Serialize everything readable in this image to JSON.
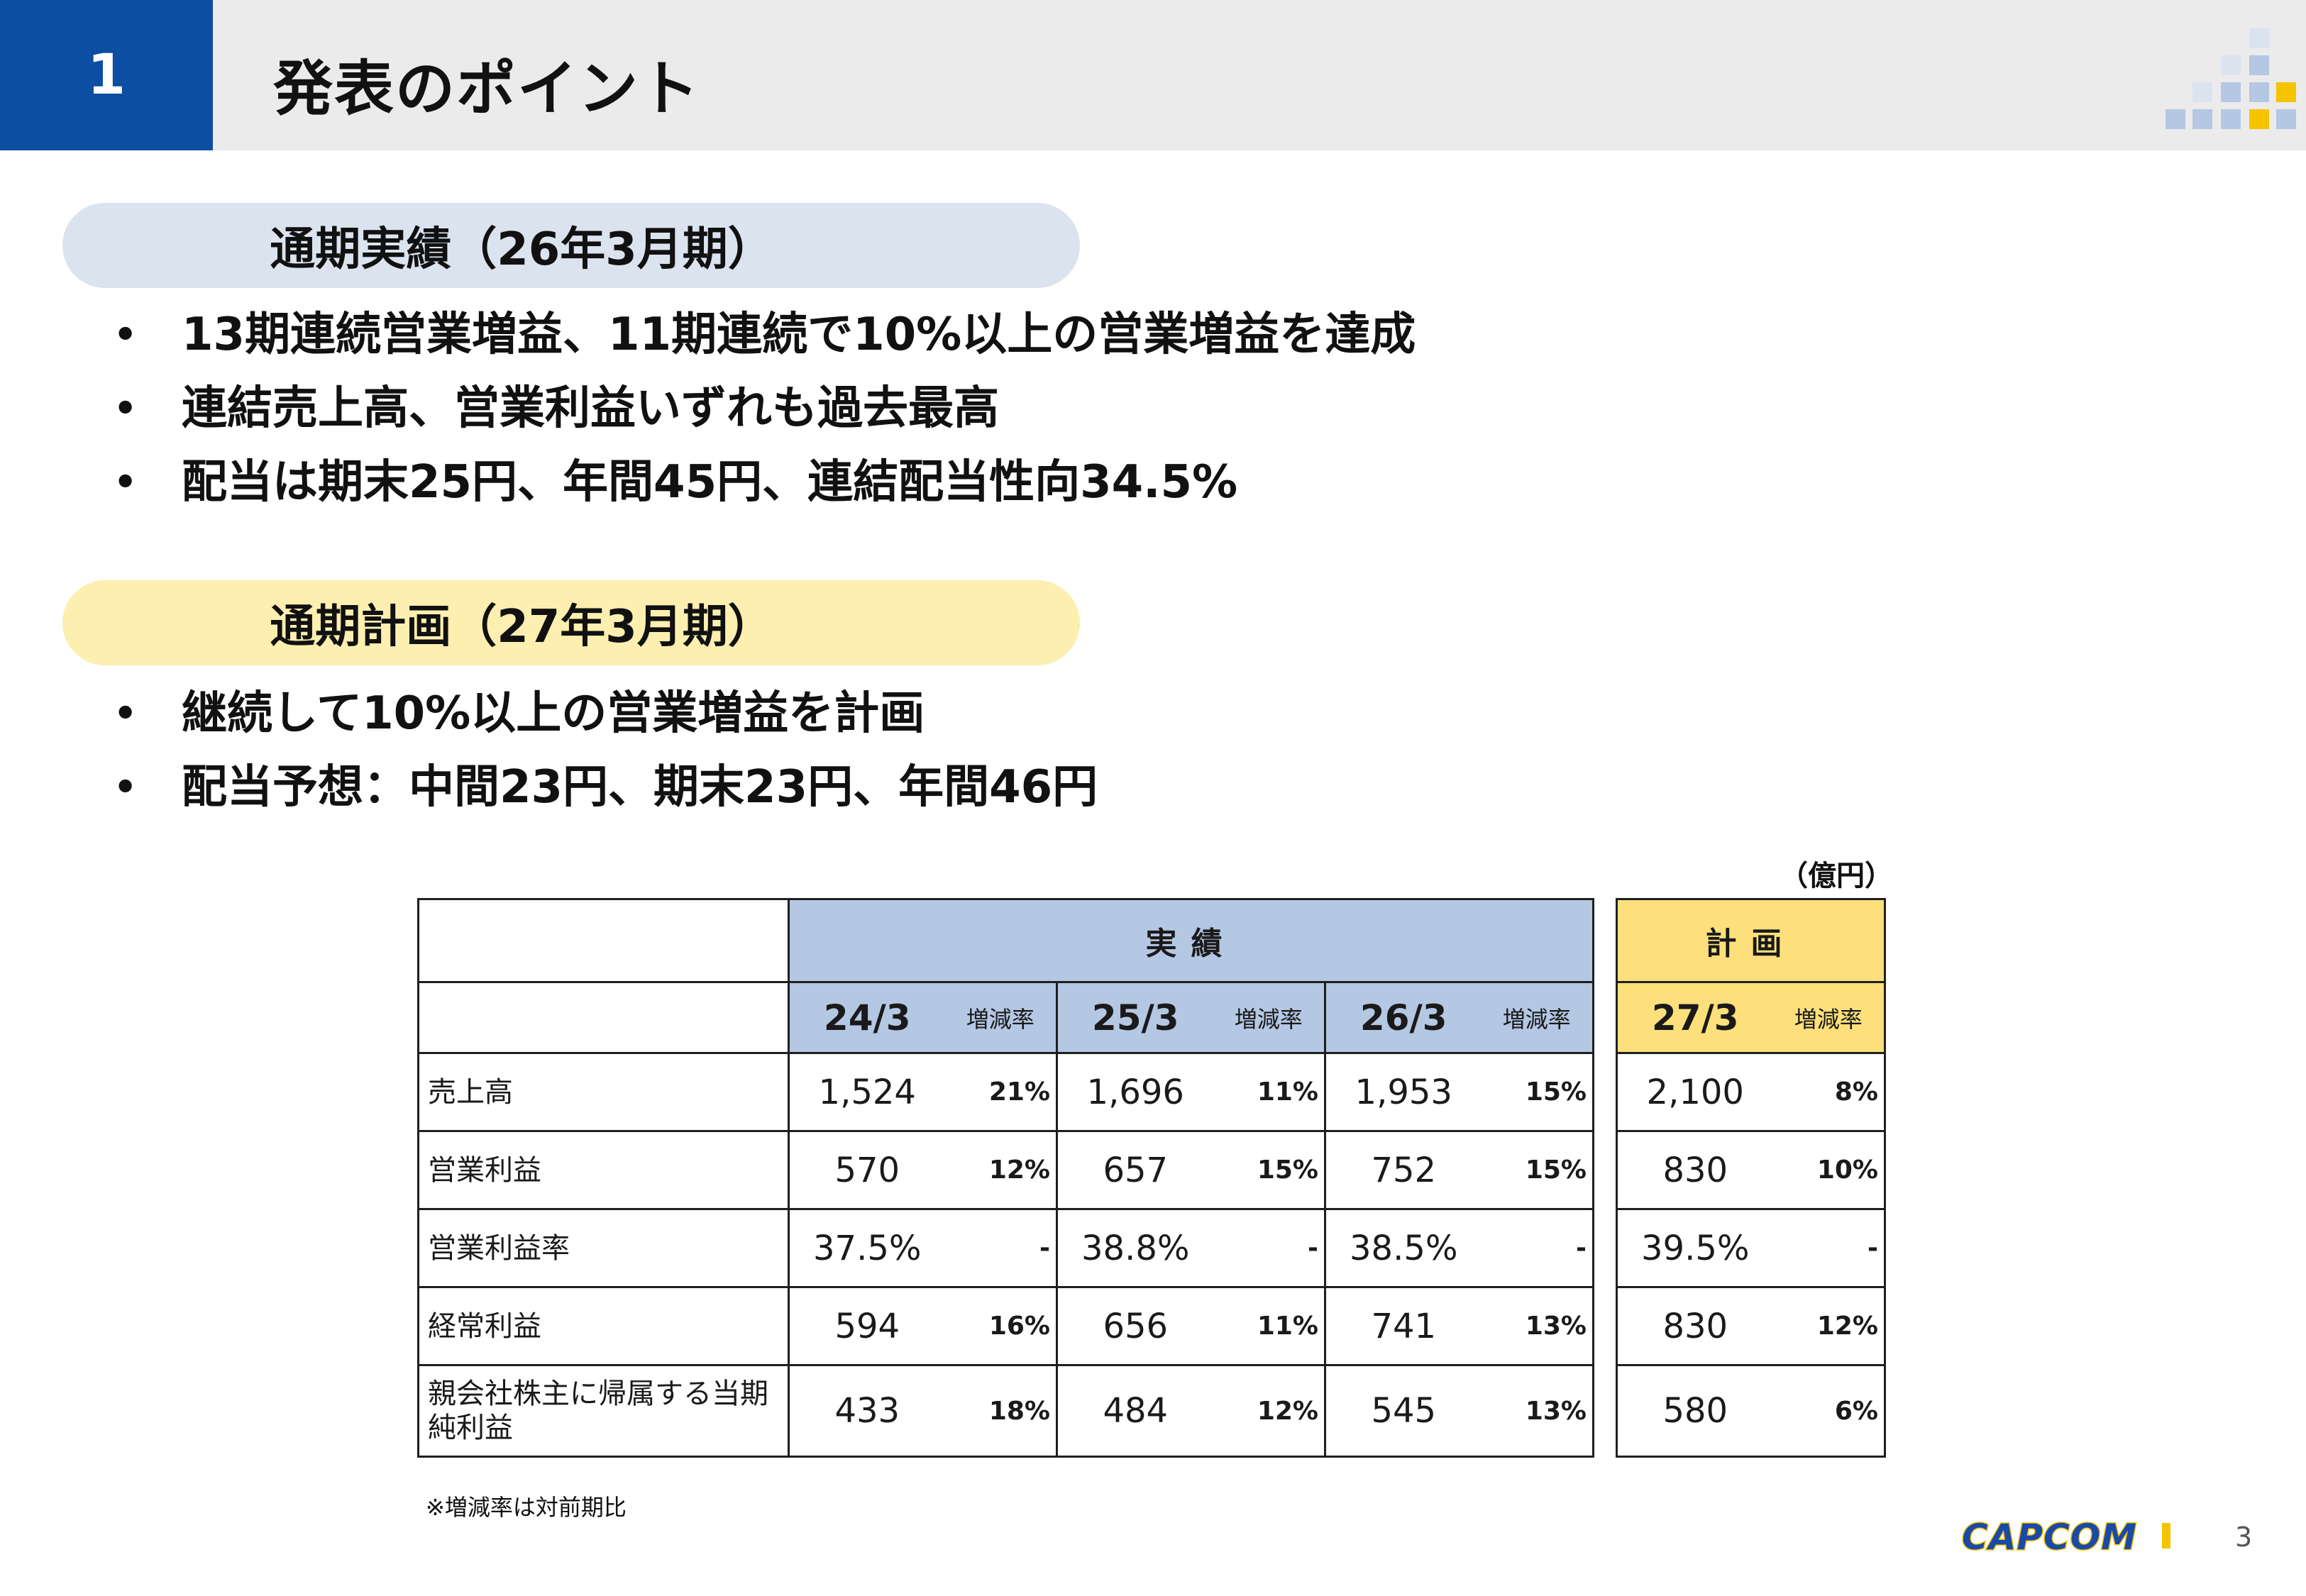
{
  "header": {
    "section_number": "1",
    "title": "発表のポイント"
  },
  "results": {
    "heading": "通期実績（26年3月期）",
    "bullets": [
      "13期連続営業増益、11期連続で10%以上の営業増益を達成",
      "連結売上高、営業利益いずれも過去最高",
      "配当は期末25円、年間45円、連結配当性向34.5%"
    ]
  },
  "plan": {
    "heading": "通期計画（27年3月期）",
    "bullets": [
      "継続して10%以上の営業増益を計画",
      "配当予想：中間23円、期末23円、年間46円"
    ]
  },
  "table": {
    "unit": "（億円）",
    "actual_header": "実績",
    "plan_header": "計画",
    "change_label": "増減率",
    "actual_years": [
      "24/3",
      "25/3",
      "26/3"
    ],
    "plan_year": "27/3",
    "rows": [
      {
        "label": "売上高",
        "actual": [
          [
            "1,524",
            "21%"
          ],
          [
            "1,696",
            "11%"
          ],
          [
            "1,953",
            "15%"
          ]
        ],
        "plan": [
          "2,100",
          "8%"
        ]
      },
      {
        "label": "営業利益",
        "actual": [
          [
            "570",
            "12%"
          ],
          [
            "657",
            "15%"
          ],
          [
            "752",
            "15%"
          ]
        ],
        "plan": [
          "830",
          "10%"
        ]
      },
      {
        "label": "営業利益率",
        "actual": [
          [
            "37.5%",
            "-"
          ],
          [
            "38.8%",
            "-"
          ],
          [
            "38.5%",
            "-"
          ]
        ],
        "plan": [
          "39.5%",
          "-"
        ]
      },
      {
        "label": "経常利益",
        "actual": [
          [
            "594",
            "16%"
          ],
          [
            "656",
            "11%"
          ],
          [
            "741",
            "13%"
          ]
        ],
        "plan": [
          "830",
          "12%"
        ]
      },
      {
        "label": "親会社株主に帰属する当期純利益",
        "actual": [
          [
            "433",
            "18%"
          ],
          [
            "484",
            "12%"
          ],
          [
            "545",
            "13%"
          ]
        ],
        "plan": [
          "580",
          "6%"
        ]
      }
    ],
    "note": "※増減率は対前期比"
  },
  "footer": {
    "logo": "CAPCOM",
    "page_number": "3"
  },
  "colors": {
    "brand_blue": "#0b4ea2",
    "actual_header_bg": "#b4c7e3",
    "plan_header_bg": "#fde07b",
    "results_pill_bg": "#dbe3ef",
    "plan_pill_bg": "#fcefb0"
  }
}
